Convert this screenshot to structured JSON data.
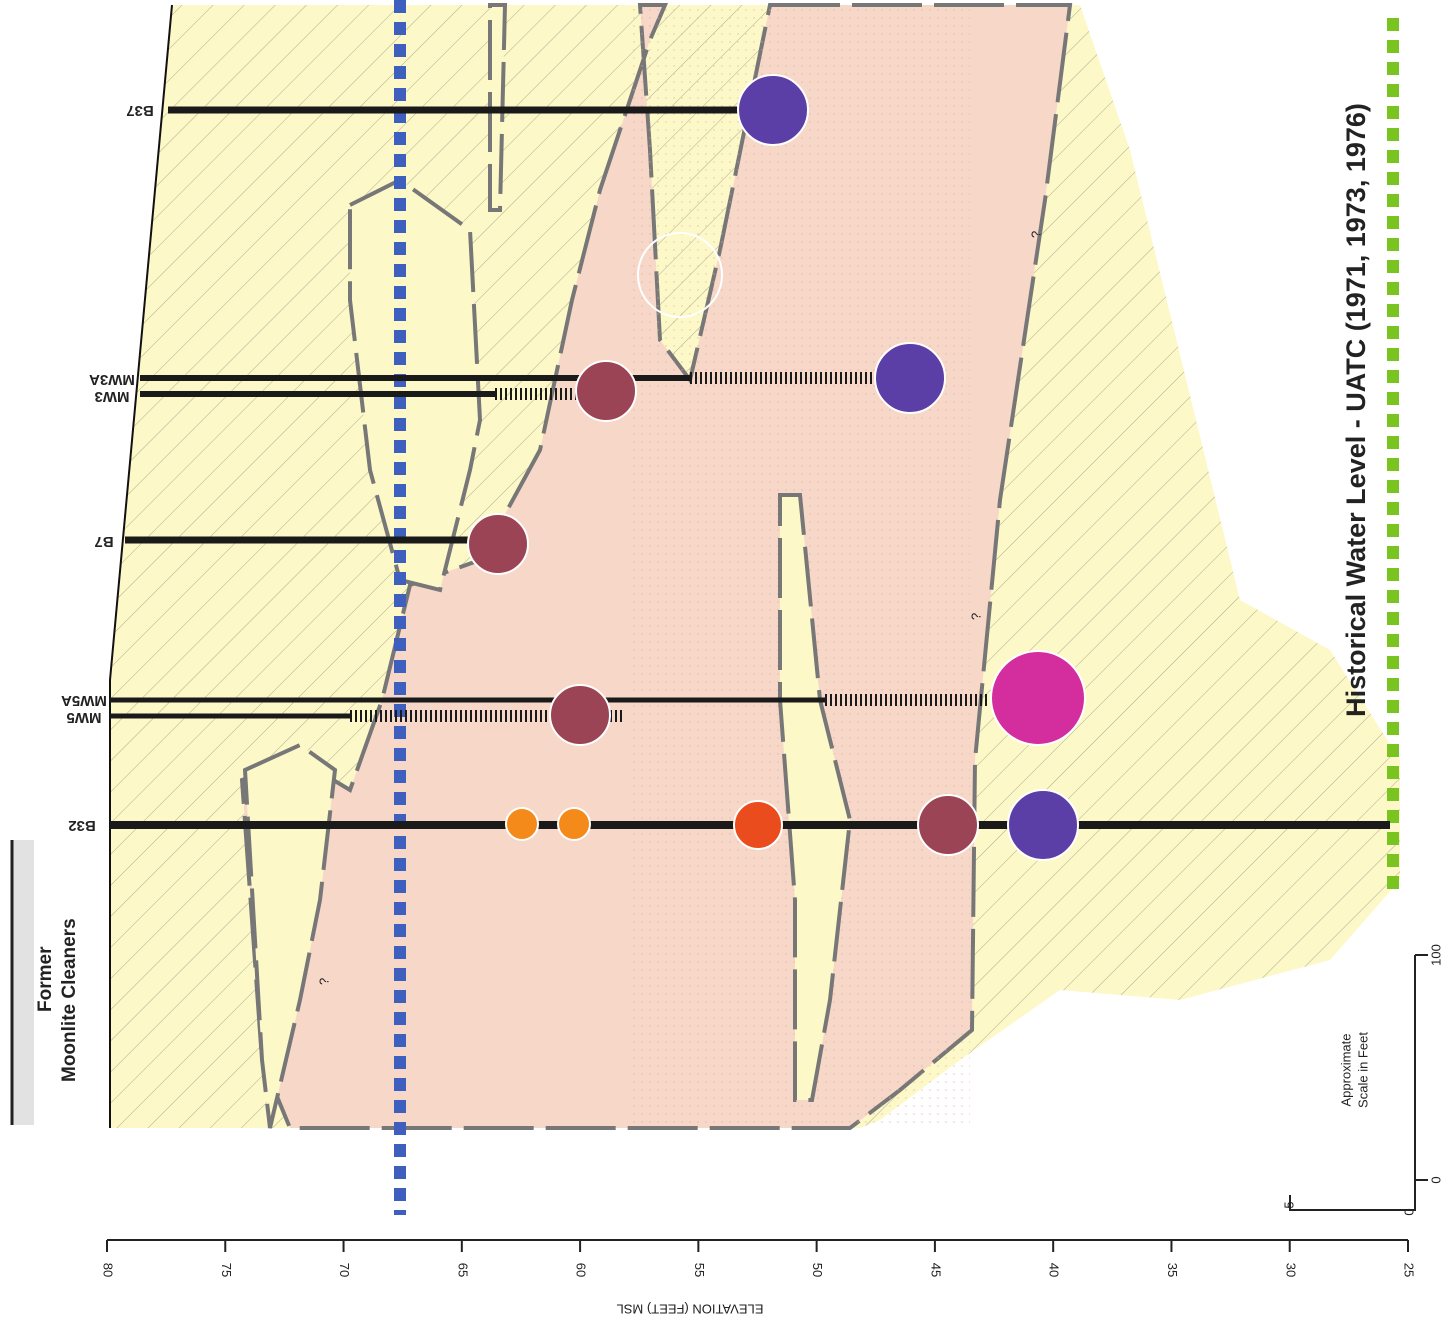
{
  "title": "Historical Water Level - UATC (1971, 1973, 1976)",
  "site_label": [
    "Former",
    "Moonlite Cleaners"
  ],
  "borings": [
    "B37",
    "MW3A",
    "MW3",
    "B7",
    "MW5A",
    "MW5",
    "B32"
  ],
  "elevation_axis": {
    "label": "ELEVATION (FEET) MSL",
    "ticks": [
      80,
      75,
      70,
      65,
      60,
      55,
      50,
      45,
      40,
      35,
      30,
      25
    ]
  },
  "scale": {
    "label": [
      "Approximate",
      "Scale in Feet"
    ],
    "horizontal": [
      "0",
      "100"
    ],
    "vertical": [
      "5",
      "0"
    ]
  },
  "unknown_marks": [
    "?",
    "?",
    "?"
  ]
}
